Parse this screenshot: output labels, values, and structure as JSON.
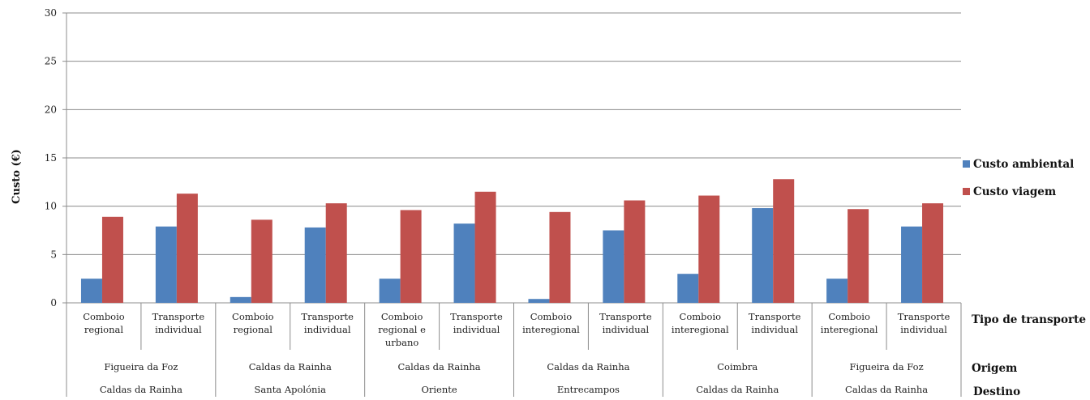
{
  "chart_data": {
    "type": "bar",
    "ylabel": "Custo (€)",
    "ylim": [
      0,
      30
    ],
    "yticks": [
      0,
      5,
      10,
      15,
      20,
      25,
      30
    ],
    "grid": true,
    "legend_position": "right",
    "categories": [
      {
        "tipo": [
          "Comboio",
          "regional"
        ],
        "origem": "Figueira da Foz",
        "destino": "Caldas da Rainha"
      },
      {
        "tipo": [
          "Transporte",
          "individual"
        ],
        "origem": "Figueira da Foz",
        "destino": "Caldas da Rainha"
      },
      {
        "tipo": [
          "Comboio",
          "regional"
        ],
        "origem": "Caldas da Rainha",
        "destino": "Santa Apolónia"
      },
      {
        "tipo": [
          "Transporte",
          "individual"
        ],
        "origem": "Caldas da Rainha",
        "destino": "Santa Apolónia"
      },
      {
        "tipo": [
          "Comboio",
          "regional e",
          "urbano"
        ],
        "origem": "Caldas da Rainha",
        "destino": "Oriente"
      },
      {
        "tipo": [
          "Transporte",
          "individual"
        ],
        "origem": "Caldas da Rainha",
        "destino": "Oriente"
      },
      {
        "tipo": [
          "Comboio",
          "interegional"
        ],
        "origem": "Caldas da Rainha",
        "destino": "Entrecampos"
      },
      {
        "tipo": [
          "Transporte",
          "individual"
        ],
        "origem": "Caldas da Rainha",
        "destino": "Entrecampos"
      },
      {
        "tipo": [
          "Comboio",
          "interegional"
        ],
        "origem": "Coimbra",
        "destino": "Caldas da Rainha"
      },
      {
        "tipo": [
          "Transporte",
          "individual"
        ],
        "origem": "Coimbra",
        "destino": "Caldas da Rainha"
      },
      {
        "tipo": [
          "Comboio",
          "interegional"
        ],
        "origem": "Figueira da Foz",
        "destino": "Caldas da Rainha"
      },
      {
        "tipo": [
          "Transporte",
          "individual"
        ],
        "origem": "Figueira da Foz",
        "destino": "Caldas da Rainha"
      }
    ],
    "groups": [
      {
        "origem": "Figueira da Foz",
        "destino": "Caldas da Rainha"
      },
      {
        "origem": "Caldas da Rainha",
        "destino": "Santa Apolónia"
      },
      {
        "origem": "Caldas da Rainha",
        "destino": "Oriente"
      },
      {
        "origem": "Caldas da Rainha",
        "destino": "Entrecampos"
      },
      {
        "origem": "Coimbra",
        "destino": "Caldas da Rainha"
      },
      {
        "origem": "Figueira da Foz",
        "destino": "Caldas da Rainha"
      }
    ],
    "series": [
      {
        "name": "Custo ambiental",
        "color": "#4f81bd",
        "values": [
          2.5,
          7.9,
          0.6,
          7.8,
          2.5,
          8.2,
          0.4,
          7.5,
          3.0,
          9.8,
          2.5,
          7.9
        ]
      },
      {
        "name": "Custo viagem",
        "color": "#c0504d",
        "values": [
          8.9,
          11.3,
          8.6,
          10.3,
          9.6,
          11.5,
          9.4,
          10.6,
          11.1,
          12.8,
          9.7,
          10.3
        ]
      }
    ],
    "row_labels": {
      "tipo": "Tipo de transporte",
      "origem": "Origem",
      "destino": "Destino"
    }
  }
}
